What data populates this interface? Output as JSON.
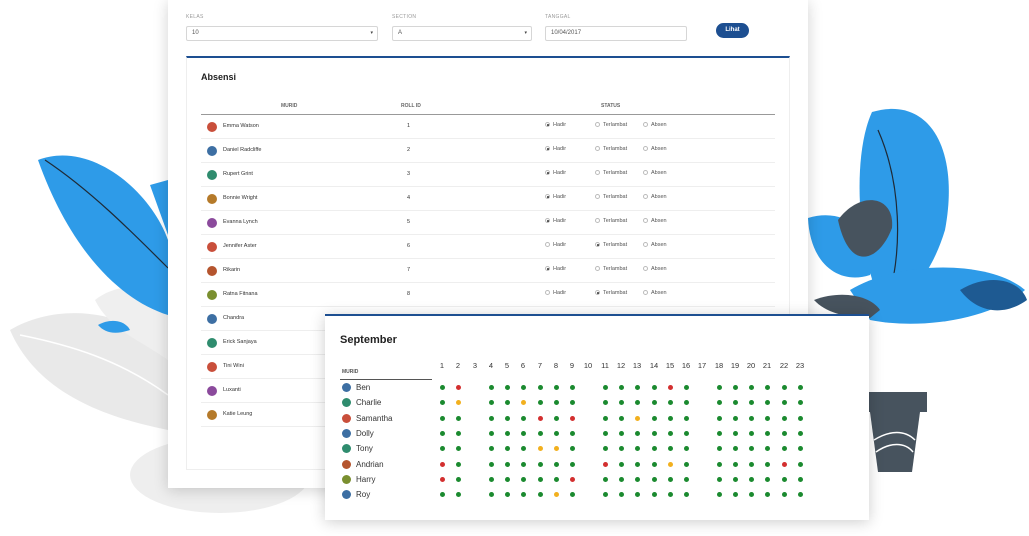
{
  "colors": {
    "accent": "#1d4f91",
    "present": "#1b8a2f",
    "late": "#f2b01e",
    "absent": "#d32f2f"
  },
  "filters": {
    "kelas_label": "KELAS",
    "kelas_value": "10",
    "section_label": "SECTION",
    "section_value": "A",
    "tanggal_label": "TANGGAL",
    "tanggal_value": "10/04/2017",
    "submit_label": "Lihat"
  },
  "attendance": {
    "title": "Absensi",
    "headers": {
      "student": "MURID",
      "roll": "ROLL ID",
      "status": "STATUS"
    },
    "status_options": [
      "Hadir",
      "Terlambat",
      "Absen"
    ],
    "rows": [
      {
        "name": "Emma Watson",
        "roll": "1",
        "status": "Hadir"
      },
      {
        "name": "Daniel Radcliffe",
        "roll": "2",
        "status": "Hadir"
      },
      {
        "name": "Rupert Grint",
        "roll": "3",
        "status": "Hadir"
      },
      {
        "name": "Bonnie Wright",
        "roll": "4",
        "status": "Hadir"
      },
      {
        "name": "Evanna Lynch",
        "roll": "5",
        "status": "Hadir"
      },
      {
        "name": "Jennifer Aster",
        "roll": "6",
        "status": "Terlambat"
      },
      {
        "name": "Rikarin",
        "roll": "7",
        "status": "Hadir"
      },
      {
        "name": "Ratna Fitnana",
        "roll": "8",
        "status": "Terlambat"
      },
      {
        "name": "Chandra",
        "roll": "",
        "status": ""
      },
      {
        "name": "Erick Sanjaya",
        "roll": "",
        "status": ""
      },
      {
        "name": "Tini Wini",
        "roll": "",
        "status": ""
      },
      {
        "name": "Luxanti",
        "roll": "",
        "status": ""
      },
      {
        "name": "Katie Leung",
        "roll": "",
        "status": ""
      }
    ]
  },
  "calendar": {
    "month": "September",
    "student_header": "MURID",
    "days": [
      "1",
      "2",
      "3",
      "4",
      "5",
      "6",
      "7",
      "8",
      "9",
      "10",
      "11",
      "12",
      "13",
      "14",
      "15",
      "16",
      "17",
      "18",
      "19",
      "20",
      "21",
      "22",
      "23"
    ],
    "status_codes": {
      "p": "present",
      "l": "late",
      "a": "absent",
      "": "none"
    },
    "students": [
      {
        "name": "Ben",
        "marks": [
          "p",
          "a",
          "",
          "p",
          "p",
          "p",
          "p",
          "p",
          "p",
          "",
          "p",
          "p",
          "p",
          "p",
          "a",
          "p",
          "",
          "p",
          "p",
          "p",
          "p",
          "p",
          "p"
        ]
      },
      {
        "name": "Charlie",
        "marks": [
          "p",
          "l",
          "",
          "p",
          "p",
          "l",
          "p",
          "p",
          "p",
          "",
          "p",
          "p",
          "p",
          "p",
          "p",
          "p",
          "",
          "p",
          "p",
          "p",
          "p",
          "p",
          "p"
        ]
      },
      {
        "name": "Samantha",
        "marks": [
          "p",
          "p",
          "",
          "p",
          "p",
          "p",
          "a",
          "p",
          "a",
          "",
          "p",
          "p",
          "l",
          "p",
          "p",
          "p",
          "",
          "p",
          "p",
          "p",
          "p",
          "p",
          "p"
        ]
      },
      {
        "name": "Dolly",
        "marks": [
          "p",
          "p",
          "",
          "p",
          "p",
          "p",
          "p",
          "p",
          "p",
          "",
          "p",
          "p",
          "p",
          "p",
          "p",
          "p",
          "",
          "p",
          "p",
          "p",
          "p",
          "p",
          "p"
        ]
      },
      {
        "name": "Tony",
        "marks": [
          "p",
          "p",
          "",
          "p",
          "p",
          "p",
          "l",
          "l",
          "p",
          "",
          "p",
          "p",
          "p",
          "p",
          "p",
          "p",
          "",
          "p",
          "p",
          "p",
          "p",
          "p",
          "p"
        ]
      },
      {
        "name": "Andrian",
        "marks": [
          "a",
          "p",
          "",
          "p",
          "p",
          "p",
          "p",
          "p",
          "p",
          "",
          "a",
          "p",
          "p",
          "p",
          "l",
          "p",
          "",
          "p",
          "p",
          "p",
          "p",
          "a",
          "p"
        ]
      },
      {
        "name": "Harry",
        "marks": [
          "a",
          "p",
          "",
          "p",
          "p",
          "p",
          "p",
          "p",
          "a",
          "",
          "p",
          "p",
          "p",
          "p",
          "p",
          "p",
          "",
          "p",
          "p",
          "p",
          "p",
          "p",
          "p"
        ]
      },
      {
        "name": "Roy",
        "marks": [
          "p",
          "p",
          "",
          "p",
          "p",
          "p",
          "p",
          "l",
          "p",
          "",
          "p",
          "p",
          "p",
          "p",
          "p",
          "p",
          "",
          "p",
          "p",
          "p",
          "p",
          "p",
          "p"
        ]
      }
    ]
  }
}
